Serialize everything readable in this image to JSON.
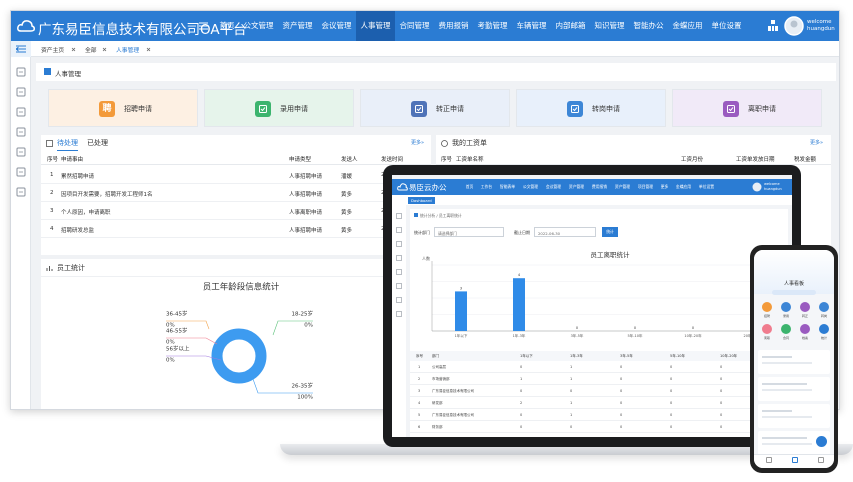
{
  "header": {
    "logo": "广东易臣信息技术有限公司OA平台",
    "menu": [
      "首页",
      "公文管理",
      "资产管理",
      "会议管理",
      "人事管理",
      "合同管理",
      "费用报销",
      "考勤管理",
      "车辆管理",
      "内部邮箱",
      "知识管理",
      "智能办公",
      "金蝶应用",
      "单位设置"
    ],
    "active_menu": 4,
    "user": [
      "welcome",
      "huangdun"
    ]
  },
  "tabs": [
    "资产主页",
    "全部",
    "人事管理"
  ],
  "breadcrumb": "人事管理",
  "shortcuts": [
    {
      "label": "招聘申请",
      "icon": "聘",
      "color": "#f39a3a",
      "background": "#fdf0e3"
    },
    {
      "label": "录用申请",
      "color": "#3cb46e",
      "background": "#e6f4eb"
    },
    {
      "label": "转正申请",
      "color": "#4f73b8",
      "background": "#e9eff9"
    },
    {
      "label": "转岗申请",
      "color": "#3d86d6",
      "background": "#e8f0fb"
    },
    {
      "label": "离职申请",
      "color": "#9a5bc0",
      "background": "#f1eaf8"
    }
  ],
  "todo": {
    "tabs": [
      "待处理",
      "已处理"
    ],
    "more": "更多»",
    "columns": [
      "序号",
      "申请事由",
      "申请类型",
      "发送人",
      "发送时间"
    ],
    "rows": [
      [
        "1",
        "累然招聘申请",
        "人事招聘申请",
        "潘媛",
        "20"
      ],
      [
        "2",
        "因项目开发需要，招聘开发工程师1名",
        "人事招聘申请",
        "黄多",
        "20"
      ],
      [
        "3",
        "个人原因，申请离职",
        "人事离职申请",
        "黄多",
        "20"
      ],
      [
        "4",
        "招聘研发总监",
        "人事招聘申请",
        "黄多",
        "20"
      ]
    ]
  },
  "salary": {
    "title": "我的工资单",
    "more": "更多»",
    "columns": [
      "序号",
      "工资单名称",
      "工资月份",
      "工资单发放日期",
      "税发金额"
    ]
  },
  "stats": {
    "title": "员工统计"
  },
  "chart_data": [
    {
      "type": "pie",
      "title": "员工年龄段信息统计",
      "categories": [
        "18-25岁",
        "26-35岁",
        "36-45岁",
        "46-55岁",
        "56岁以上"
      ],
      "values": [
        0,
        100,
        0,
        0,
        0
      ],
      "value_labels": [
        "0%",
        "100%",
        "0%",
        "0%",
        "0%"
      ],
      "colors": [
        "#5cc27a",
        "#3d9bf0",
        "#f2a34a",
        "#f07c8e",
        "#a27be0"
      ]
    },
    {
      "type": "bar",
      "title": "员工离职统计",
      "y_label": "人数",
      "categories": [
        "1年以下",
        "1年-3年",
        "3年-5年",
        "5年-10年",
        "10年-20年",
        "20年以上"
      ],
      "values": [
        3,
        4,
        0,
        0,
        0,
        0
      ],
      "ylim": [
        0,
        5
      ],
      "color": "#2f8be8"
    }
  ],
  "laptop": {
    "logo": "易臣云办公",
    "menu": [
      "首页",
      "工作台",
      "智能表单",
      "公文管理",
      "会议管理",
      "资产管理",
      "费用报销",
      "资产管理",
      "项目管理",
      "更多",
      "金蝶应用",
      "单位设置"
    ],
    "user": [
      "welcome",
      "huangdun"
    ],
    "tab": "Dashboard",
    "breadcrumb": "统计分析 / 员工离职统计",
    "filter": [
      "统计部门",
      "请选择部门",
      "截止日期",
      "2022-06-30",
      "统计"
    ],
    "table": {
      "columns": [
        "序号",
        "部门",
        "1年以下",
        "1年-3年",
        "3年-5年",
        "5年-10年",
        "10年-20年"
      ],
      "rows": [
        [
          "1",
          "公司高层",
          "0",
          "1",
          "0",
          "0",
          "0"
        ],
        [
          "2",
          "市场营销部",
          "1",
          "1",
          "0",
          "0",
          "0"
        ],
        [
          "3",
          "广东易臣信息技术有限公司",
          "0",
          "0",
          "0",
          "0",
          "0"
        ],
        [
          "4",
          "研发部",
          "2",
          "1",
          "0",
          "0",
          "0"
        ],
        [
          "5",
          "广东易臣信息技术有限公司",
          "0",
          "1",
          "0",
          "0",
          "0"
        ],
        [
          "6",
          "财务部",
          "0",
          "0",
          "0",
          "0",
          "0"
        ]
      ]
    }
  },
  "phone": {
    "title": "人事看板",
    "items": [
      "招聘",
      "录用",
      "转正",
      "转岗",
      "离职",
      "合同",
      "档案",
      "统计"
    ]
  }
}
